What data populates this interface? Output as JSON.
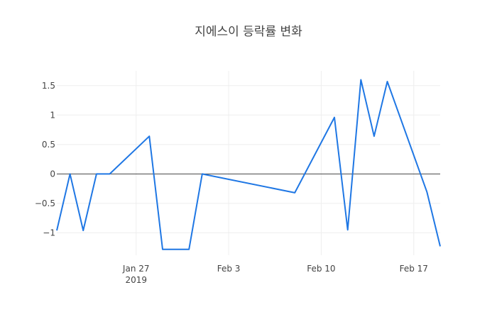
{
  "chart_data": {
    "type": "line",
    "title": "지에스이 등락률 변화",
    "xlabel": "",
    "ylabel": "",
    "grid": true,
    "legend": "none",
    "xlim": [
      "2019-01-21",
      "2019-02-19"
    ],
    "ylim": [
      -1.38,
      1.75
    ],
    "x_ticks": [
      {
        "value": "2019-01-27",
        "label": "Jan 27",
        "sublabel": "2019"
      },
      {
        "value": "2019-02-03",
        "label": "Feb 3",
        "sublabel": ""
      },
      {
        "value": "2019-02-10",
        "label": "Feb 10",
        "sublabel": ""
      },
      {
        "value": "2019-02-17",
        "label": "Feb 17",
        "sublabel": ""
      }
    ],
    "y_ticks": [
      {
        "value": -1,
        "label": "−1"
      },
      {
        "value": -0.5,
        "label": "−0.5"
      },
      {
        "value": 0,
        "label": "0"
      },
      {
        "value": 0.5,
        "label": "0.5"
      },
      {
        "value": 1,
        "label": "1"
      },
      {
        "value": 1.5,
        "label": "1.5"
      }
    ],
    "series": [
      {
        "name": "",
        "color": "#1f77e4",
        "x": [
          "2019-01-21",
          "2019-01-22",
          "2019-01-23",
          "2019-01-24",
          "2019-01-25",
          "2019-01-28",
          "2019-01-29",
          "2019-01-31",
          "2019-02-01",
          "2019-02-08",
          "2019-02-11",
          "2019-02-12",
          "2019-02-13",
          "2019-02-14",
          "2019-02-15",
          "2019-02-18",
          "2019-02-19"
        ],
        "y": [
          -0.96,
          0.0,
          -0.96,
          0.0,
          0.0,
          0.64,
          -1.28,
          -1.28,
          0.0,
          -0.32,
          0.96,
          -0.95,
          1.6,
          0.64,
          1.57,
          -0.31,
          -1.23
        ]
      }
    ]
  }
}
